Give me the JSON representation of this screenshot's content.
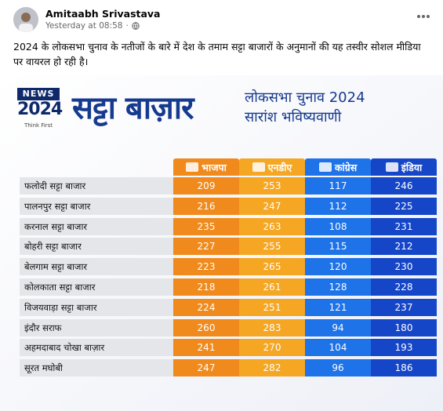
{
  "post": {
    "author": "Amitaabh Srivastava",
    "timestamp": "Yesterday at 08:58",
    "caption": "2024 के लोकसभा चुनाव के नतीजों के बारे में देश के तमाम सट्टा बाजारों के अनुमानों की यह तस्वीर सोशल मीडिया पर वायरल हो रही है।"
  },
  "image": {
    "logo_top": "NEWS",
    "logo_year": "2024",
    "logo_tagline": "Think First",
    "title": "सट्टा बाज़ार",
    "subtitle_line1": "लोकसभा चुनाव 2024",
    "subtitle_line2": "सारांश भविष्यवाणी",
    "columns": [
      {
        "label": "भाजपा",
        "color": "#f08a1c",
        "icon": "bjp-logo-icon"
      },
      {
        "label": "एनडीए",
        "color": "#f5a623",
        "icon": "nda-logo-icon"
      },
      {
        "label": "कांग्रेस",
        "color": "#1e73e8",
        "icon": "congress-logo-icon"
      },
      {
        "label": "इंडिया",
        "color": "#1546c8",
        "icon": "india-logo-icon"
      }
    ],
    "rows": [
      {
        "market": "फलोदी सट्टा बाजार",
        "values": [
          "209",
          "253",
          "117",
          "246"
        ]
      },
      {
        "market": "पालनपुर सट्टा बाजार",
        "values": [
          "216",
          "247",
          "112",
          "225"
        ]
      },
      {
        "market": "करनाल सट्टा बाजार",
        "values": [
          "235",
          "263",
          "108",
          "231"
        ]
      },
      {
        "market": "बोहरी सट्टा बाजार",
        "values": [
          "227",
          "255",
          "115",
          "212"
        ]
      },
      {
        "market": "बेलगाम सट्टा बाजार",
        "values": [
          "223",
          "265",
          "120",
          "230"
        ]
      },
      {
        "market": "कोलकाता सट्टा बाजार",
        "values": [
          "218",
          "261",
          "128",
          "228"
        ]
      },
      {
        "market": "विजयवाड़ा सट्टा बाजार",
        "values": [
          "224",
          "251",
          "121",
          "237"
        ]
      },
      {
        "market": "इंदौर सराफ",
        "values": [
          "260",
          "283",
          "94",
          "180"
        ]
      },
      {
        "market": "अहमदाबाद चोखा बाज़ार",
        "values": [
          "241",
          "270",
          "104",
          "193"
        ]
      },
      {
        "market": "सूरत मघोबी",
        "values": [
          "247",
          "282",
          "96",
          "186"
        ]
      }
    ]
  }
}
